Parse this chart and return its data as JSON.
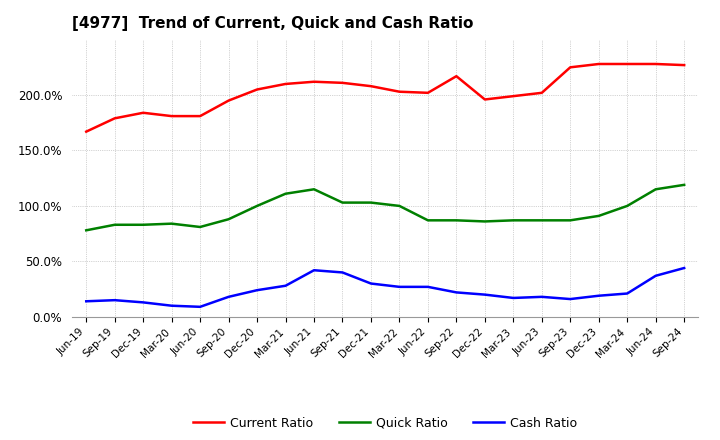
{
  "title": "[4977]  Trend of Current, Quick and Cash Ratio",
  "x_labels": [
    "Jun-19",
    "Sep-19",
    "Dec-19",
    "Mar-20",
    "Jun-20",
    "Sep-20",
    "Dec-20",
    "Mar-21",
    "Jun-21",
    "Sep-21",
    "Dec-21",
    "Mar-22",
    "Jun-22",
    "Sep-22",
    "Dec-22",
    "Mar-23",
    "Jun-23",
    "Sep-23",
    "Dec-23",
    "Mar-24",
    "Jun-24",
    "Sep-24"
  ],
  "current_ratio": [
    167,
    179,
    184,
    181,
    181,
    195,
    205,
    210,
    212,
    211,
    208,
    203,
    202,
    217,
    196,
    199,
    202,
    225,
    228,
    228,
    228,
    227
  ],
  "quick_ratio": [
    78,
    83,
    83,
    84,
    81,
    88,
    100,
    111,
    115,
    103,
    103,
    100,
    87,
    87,
    86,
    87,
    87,
    87,
    91,
    100,
    115,
    119
  ],
  "cash_ratio": [
    14,
    15,
    13,
    10,
    9,
    18,
    24,
    28,
    42,
    40,
    30,
    27,
    27,
    22,
    20,
    17,
    18,
    16,
    19,
    21,
    37,
    44
  ],
  "current_color": "#FF0000",
  "quick_color": "#008000",
  "cash_color": "#0000FF",
  "ylim": [
    0,
    250
  ],
  "yticks": [
    0,
    50,
    100,
    150,
    200
  ],
  "background_color": "#FFFFFF",
  "grid_color": "#AAAAAA"
}
